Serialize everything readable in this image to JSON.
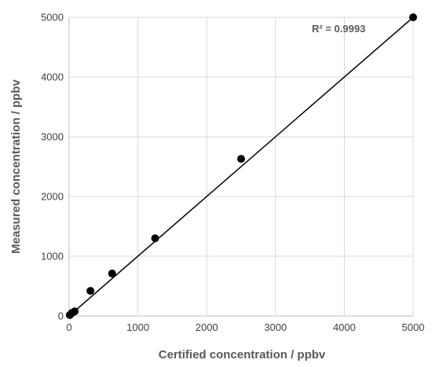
{
  "chart_data": {
    "type": "scatter",
    "title": "",
    "xlabel": "Certified concentration / ppbv",
    "ylabel": "Measured concentration / ppbv",
    "xlim": [
      0,
      5000
    ],
    "ylim": [
      0,
      5000
    ],
    "xticks": [
      "0",
      "1000",
      "2000",
      "3000",
      "4000",
      "5000"
    ],
    "yticks": [
      "0",
      "1000",
      "2000",
      "3000",
      "4000",
      "5000"
    ],
    "grid": true,
    "legend": "none",
    "annotation": "R² = 0.9993",
    "colors": {
      "points": "#000000",
      "line": "#000000",
      "grid": "#d9d9d9",
      "axis": "#bfbfbf"
    },
    "series": [
      {
        "x": [
          10,
          40,
          80,
          310,
          625,
          1250,
          2500,
          5000
        ],
        "y": [
          15,
          50,
          75,
          420,
          710,
          1300,
          2630,
          5000
        ]
      }
    ],
    "trendline": {
      "x": [
        0,
        5000
      ],
      "y": [
        0,
        5000
      ]
    }
  }
}
